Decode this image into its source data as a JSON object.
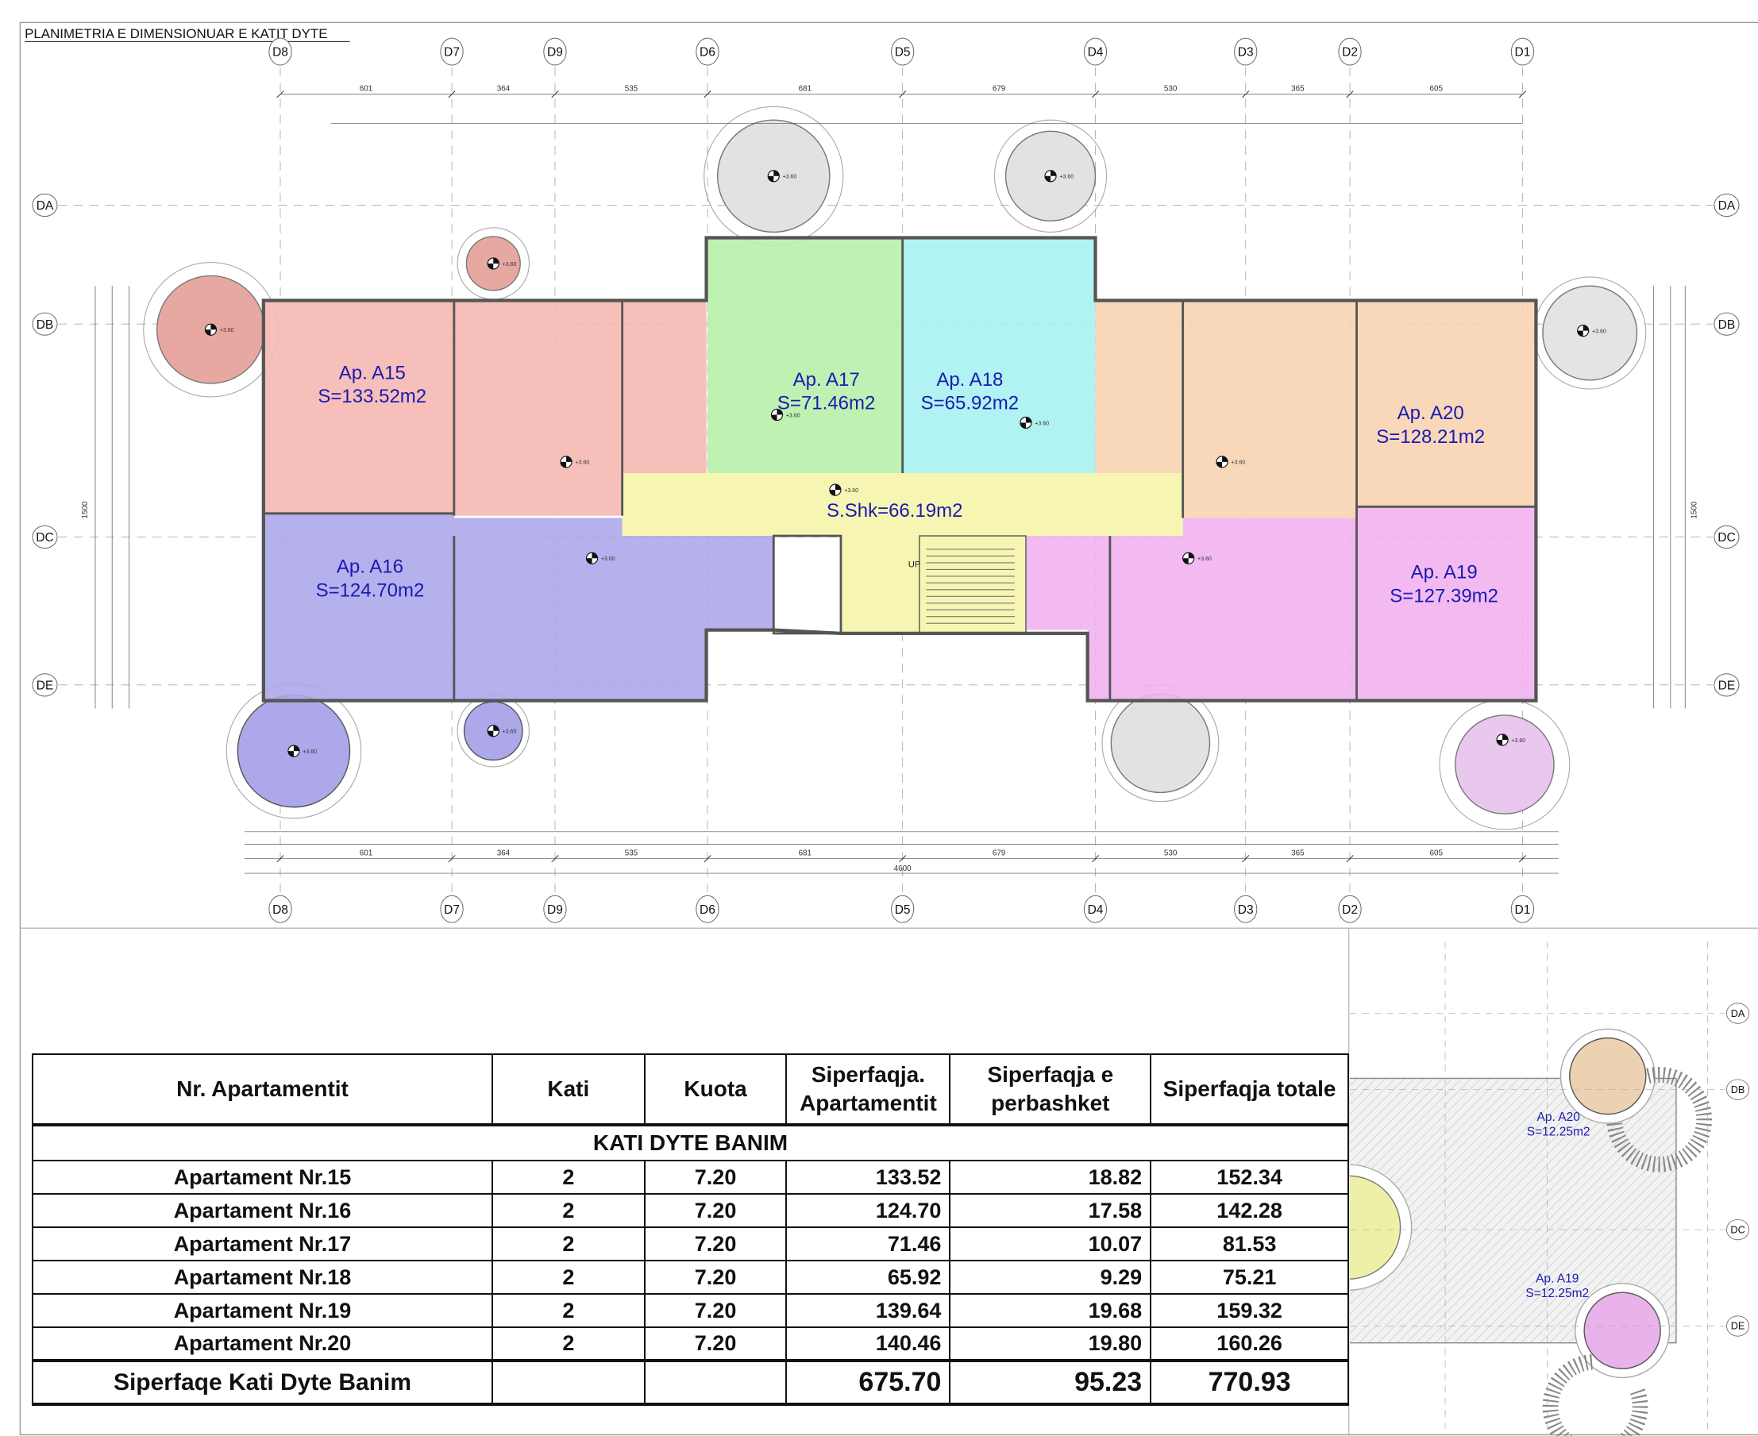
{
  "title": "PLANIMETRIA E DIMENSIONUAR E KATIT DYTE",
  "grid_columns": [
    "D8",
    "D7",
    "D9",
    "D6",
    "D5",
    "D4",
    "D3",
    "D2",
    "D1"
  ],
  "grid_rows": [
    "DA",
    "DB",
    "DC",
    "DE"
  ],
  "dimensions": {
    "top_main": [
      "601",
      "364",
      "535",
      "681",
      "679",
      "530",
      "365",
      "605"
    ],
    "bottom_main": [
      "601",
      "364",
      "535",
      "681",
      "679",
      "530",
      "365",
      "605"
    ],
    "bottom_total": "4600",
    "side_total": "1500"
  },
  "apartments": [
    {
      "name": "Ap. A15",
      "area": "S=133.52m2",
      "color": "#f5b8b2"
    },
    {
      "name": "Ap. A16",
      "area": "S=124.70m2",
      "color": "#aca8ea"
    },
    {
      "name": "Ap. A17",
      "area": "S=71.46m2",
      "color": "#b8f0aa"
    },
    {
      "name": "Ap. A18",
      "area": "S=65.92m2",
      "color": "#a9f1f2"
    },
    {
      "name": "Ap. A19",
      "area": "S=127.39m2",
      "color": "#f2b2f0"
    },
    {
      "name": "Ap. A20",
      "area": "S=128.21m2",
      "color": "#f8d4b2"
    }
  ],
  "common_area": {
    "label": "S.Shk=66.19m2",
    "color": "#f6f6b2"
  },
  "stair_label": "UP",
  "elevation_label": "+3.60",
  "mini_plan": {
    "grid_rows": [
      "DA",
      "DB",
      "DC",
      "DE"
    ],
    "labels": [
      {
        "name": "Ap. A20",
        "area": "S=12.25m2"
      },
      {
        "name": "Ap. A19",
        "area": "S=12.25m2"
      }
    ]
  },
  "table": {
    "headers": [
      "Nr. Apartamentit",
      "Kati",
      "Kuota",
      "Siperfaqja. Apartamentit",
      "Siperfaqja e perbashket",
      "Siperfaqja totale"
    ],
    "section": "KATI  DYTE BANIM",
    "rows": [
      [
        "Apartament Nr.15",
        "2",
        "7.20",
        "133.52",
        "18.82",
        "152.34"
      ],
      [
        "Apartament Nr.16",
        "2",
        "7.20",
        "124.70",
        "17.58",
        "142.28"
      ],
      [
        "Apartament Nr.17",
        "2",
        "7.20",
        "71.46",
        "10.07",
        "81.53"
      ],
      [
        "Apartament Nr.18",
        "2",
        "7.20",
        "65.92",
        "9.29",
        "75.21"
      ],
      [
        "Apartament Nr.19",
        "2",
        "7.20",
        "139.64",
        "19.68",
        "159.32"
      ],
      [
        "Apartament Nr.20",
        "2",
        "7.20",
        "140.46",
        "19.80",
        "160.26"
      ]
    ],
    "total": [
      "Siperfaqe Kati Dyte Banim",
      "",
      "",
      "675.70",
      "95.23",
      "770.93"
    ]
  }
}
